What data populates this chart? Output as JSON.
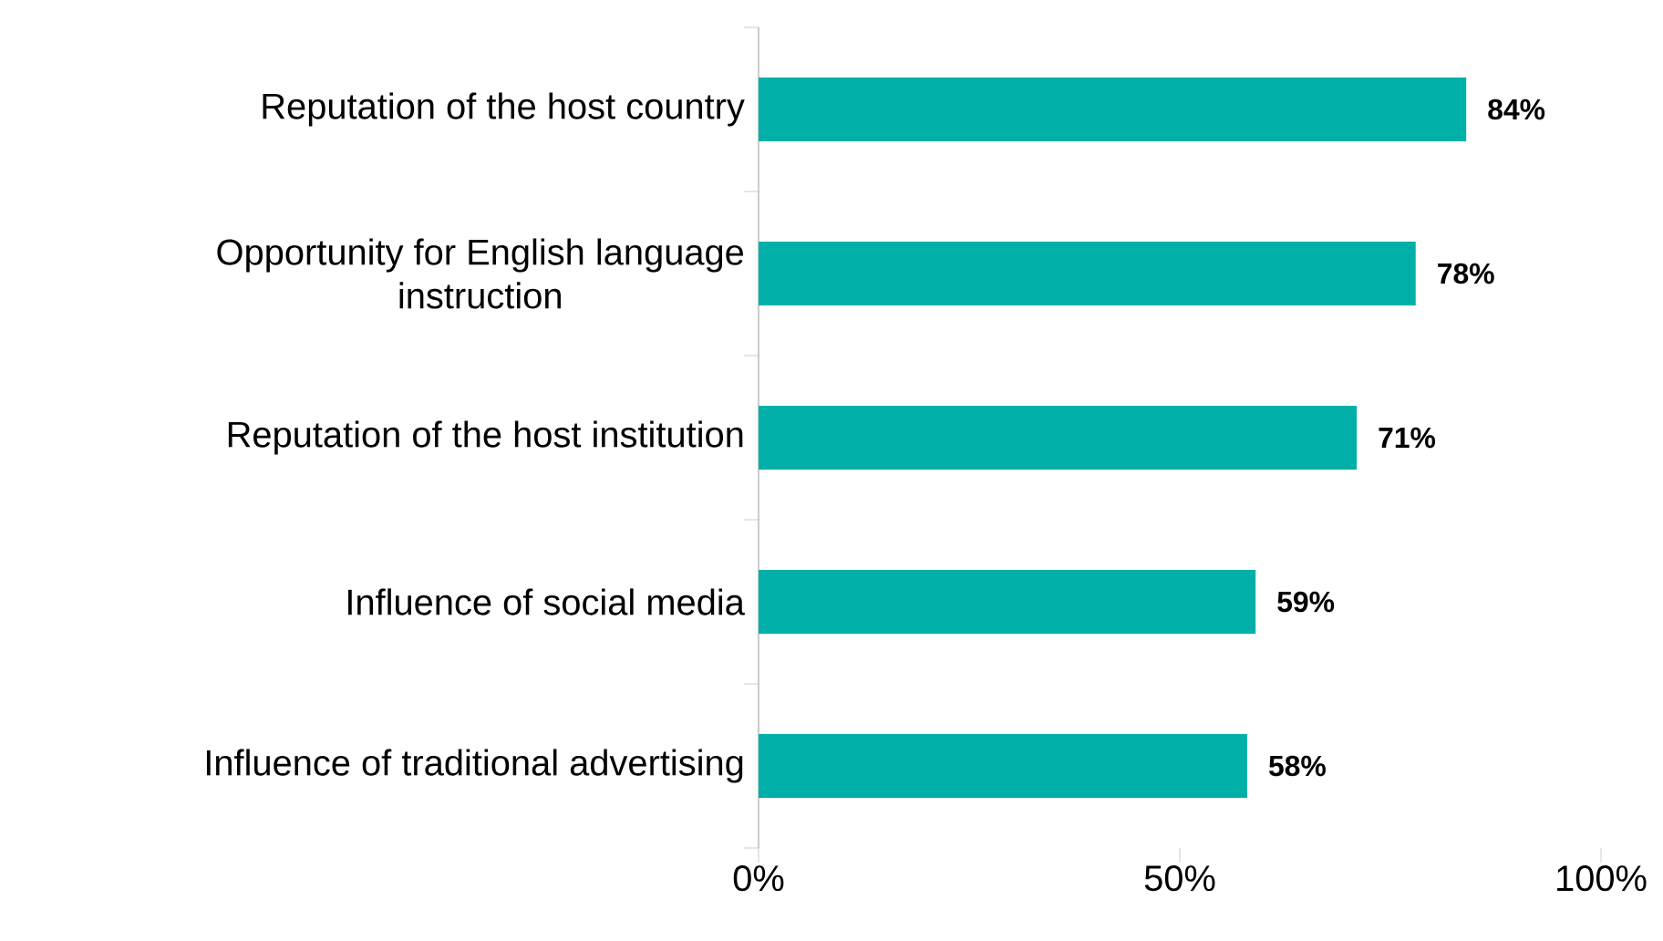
{
  "chart_data": {
    "type": "bar",
    "orientation": "horizontal",
    "categories": [
      "Reputation of the host country",
      "Opportunity for English language instruction",
      "Reputation of the host institution",
      "Influence of social media",
      "Influence of traditional advertising"
    ],
    "values": [
      84,
      78,
      71,
      59,
      58
    ],
    "value_labels": [
      "84%",
      "78%",
      "71%",
      "59%",
      "58%"
    ],
    "color": "#00b0a8",
    "xlim": [
      0,
      100
    ],
    "xticks": [
      {
        "value": 0,
        "label": "0%"
      },
      {
        "value": 50,
        "label": "50%"
      },
      {
        "value": 100,
        "label": "100%"
      }
    ]
  }
}
